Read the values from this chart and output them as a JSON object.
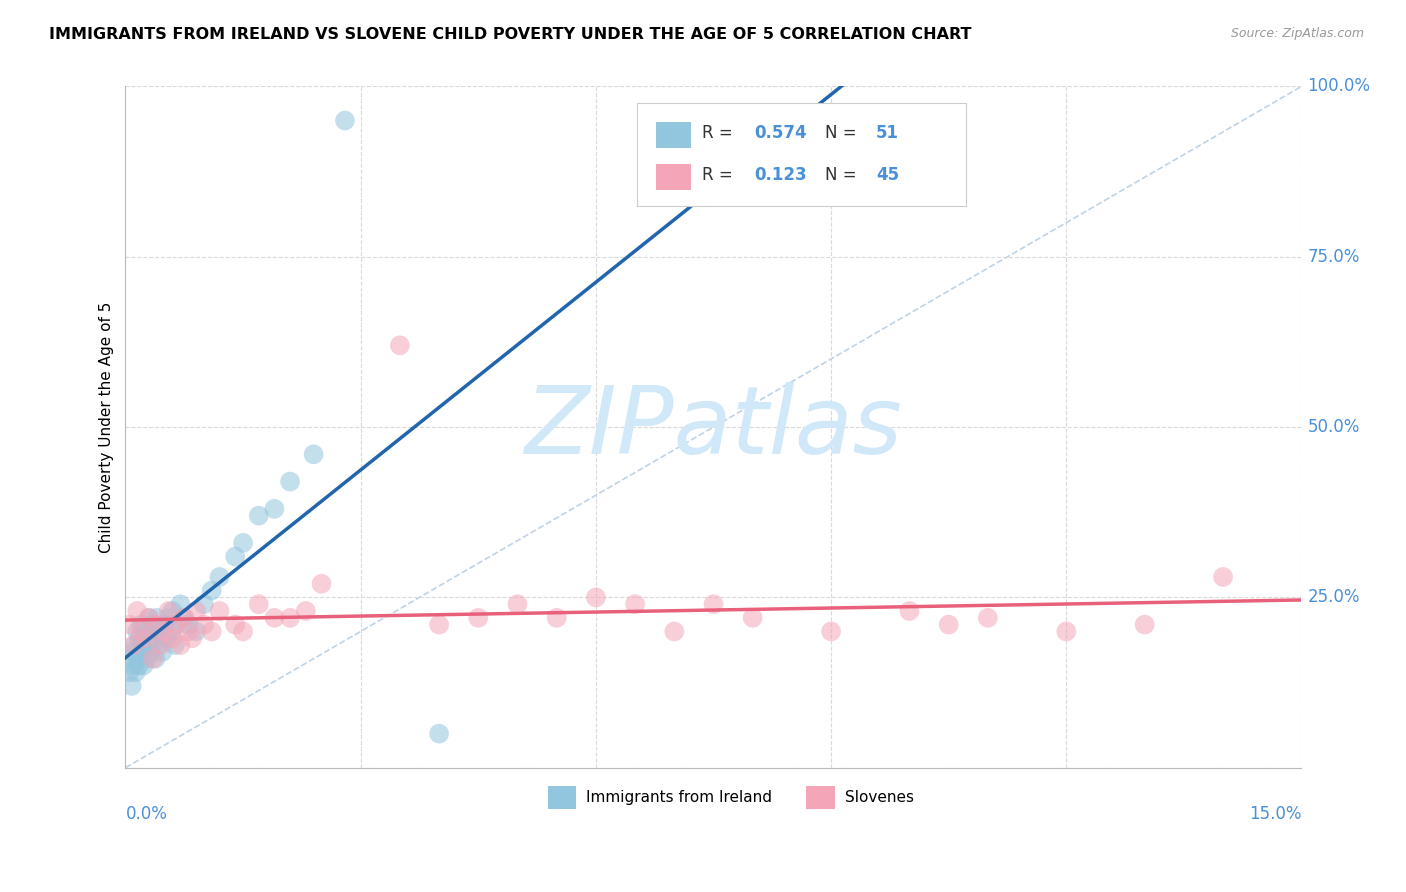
{
  "title": "IMMIGRANTS FROM IRELAND VS SLOVENE CHILD POVERTY UNDER THE AGE OF 5 CORRELATION CHART",
  "source": "Source: ZipAtlas.com",
  "ylabel_label": "Child Poverty Under the Age of 5",
  "legend_label1": "Immigrants from Ireland",
  "legend_label2": "Slovenes",
  "legend_r1_val": "0.574",
  "legend_n1_val": "51",
  "legend_r2_val": "0.123",
  "legend_n2_val": "45",
  "blue_color": "#92c5de",
  "pink_color": "#f4a6b8",
  "blue_line_color": "#2166ac",
  "pink_line_color": "#e8607a",
  "diag_color": "#aec8e0",
  "watermark": "ZIPatlas",
  "watermark_color": "#d0e8f8",
  "label_color": "#4a90d9",
  "xmin": 0,
  "xmax": 15,
  "ymin": 0,
  "ymax": 100,
  "blue_x": [
    0.05,
    0.07,
    0.08,
    0.1,
    0.1,
    0.12,
    0.13,
    0.15,
    0.15,
    0.17,
    0.18,
    0.2,
    0.2,
    0.22,
    0.23,
    0.25,
    0.27,
    0.28,
    0.3,
    0.3,
    0.32,
    0.33,
    0.35,
    0.37,
    0.38,
    0.4,
    0.42,
    0.45,
    0.47,
    0.5,
    0.52,
    0.55,
    0.58,
    0.6,
    0.63,
    0.65,
    0.7,
    0.75,
    0.8,
    0.9,
    1.0,
    1.1,
    1.2,
    1.4,
    1.5,
    1.7,
    1.9,
    2.1,
    2.4,
    2.8,
    4.0
  ],
  "blue_y": [
    14,
    16,
    12,
    17,
    15,
    18,
    14,
    20,
    16,
    15,
    19,
    17,
    21,
    18,
    15,
    20,
    16,
    18,
    22,
    19,
    17,
    20,
    21,
    19,
    16,
    22,
    18,
    20,
    17,
    21,
    19,
    22,
    20,
    23,
    18,
    21,
    24,
    22,
    21,
    20,
    24,
    26,
    28,
    31,
    33,
    37,
    38,
    42,
    46,
    95,
    5
  ],
  "pink_x": [
    0.05,
    0.1,
    0.15,
    0.2,
    0.25,
    0.3,
    0.35,
    0.4,
    0.45,
    0.5,
    0.55,
    0.6,
    0.65,
    0.7,
    0.75,
    0.8,
    0.85,
    0.9,
    1.0,
    1.1,
    1.2,
    1.4,
    1.5,
    1.7,
    1.9,
    2.1,
    2.3,
    2.5,
    3.5,
    4.0,
    4.5,
    5.0,
    5.5,
    6.0,
    6.5,
    7.0,
    7.5,
    8.0,
    9.0,
    10.0,
    10.5,
    11.0,
    12.0,
    13.0,
    14.0
  ],
  "pink_y": [
    21,
    18,
    23,
    20,
    19,
    22,
    16,
    21,
    18,
    20,
    23,
    19,
    21,
    18,
    22,
    20,
    19,
    23,
    21,
    20,
    23,
    21,
    20,
    24,
    22,
    22,
    23,
    27,
    62,
    21,
    22,
    24,
    22,
    25,
    24,
    20,
    24,
    22,
    20,
    23,
    21,
    22,
    20,
    21,
    28
  ],
  "blue_trend": [
    0.0,
    75.0
  ],
  "pink_trend": [
    21.0,
    28.0
  ]
}
